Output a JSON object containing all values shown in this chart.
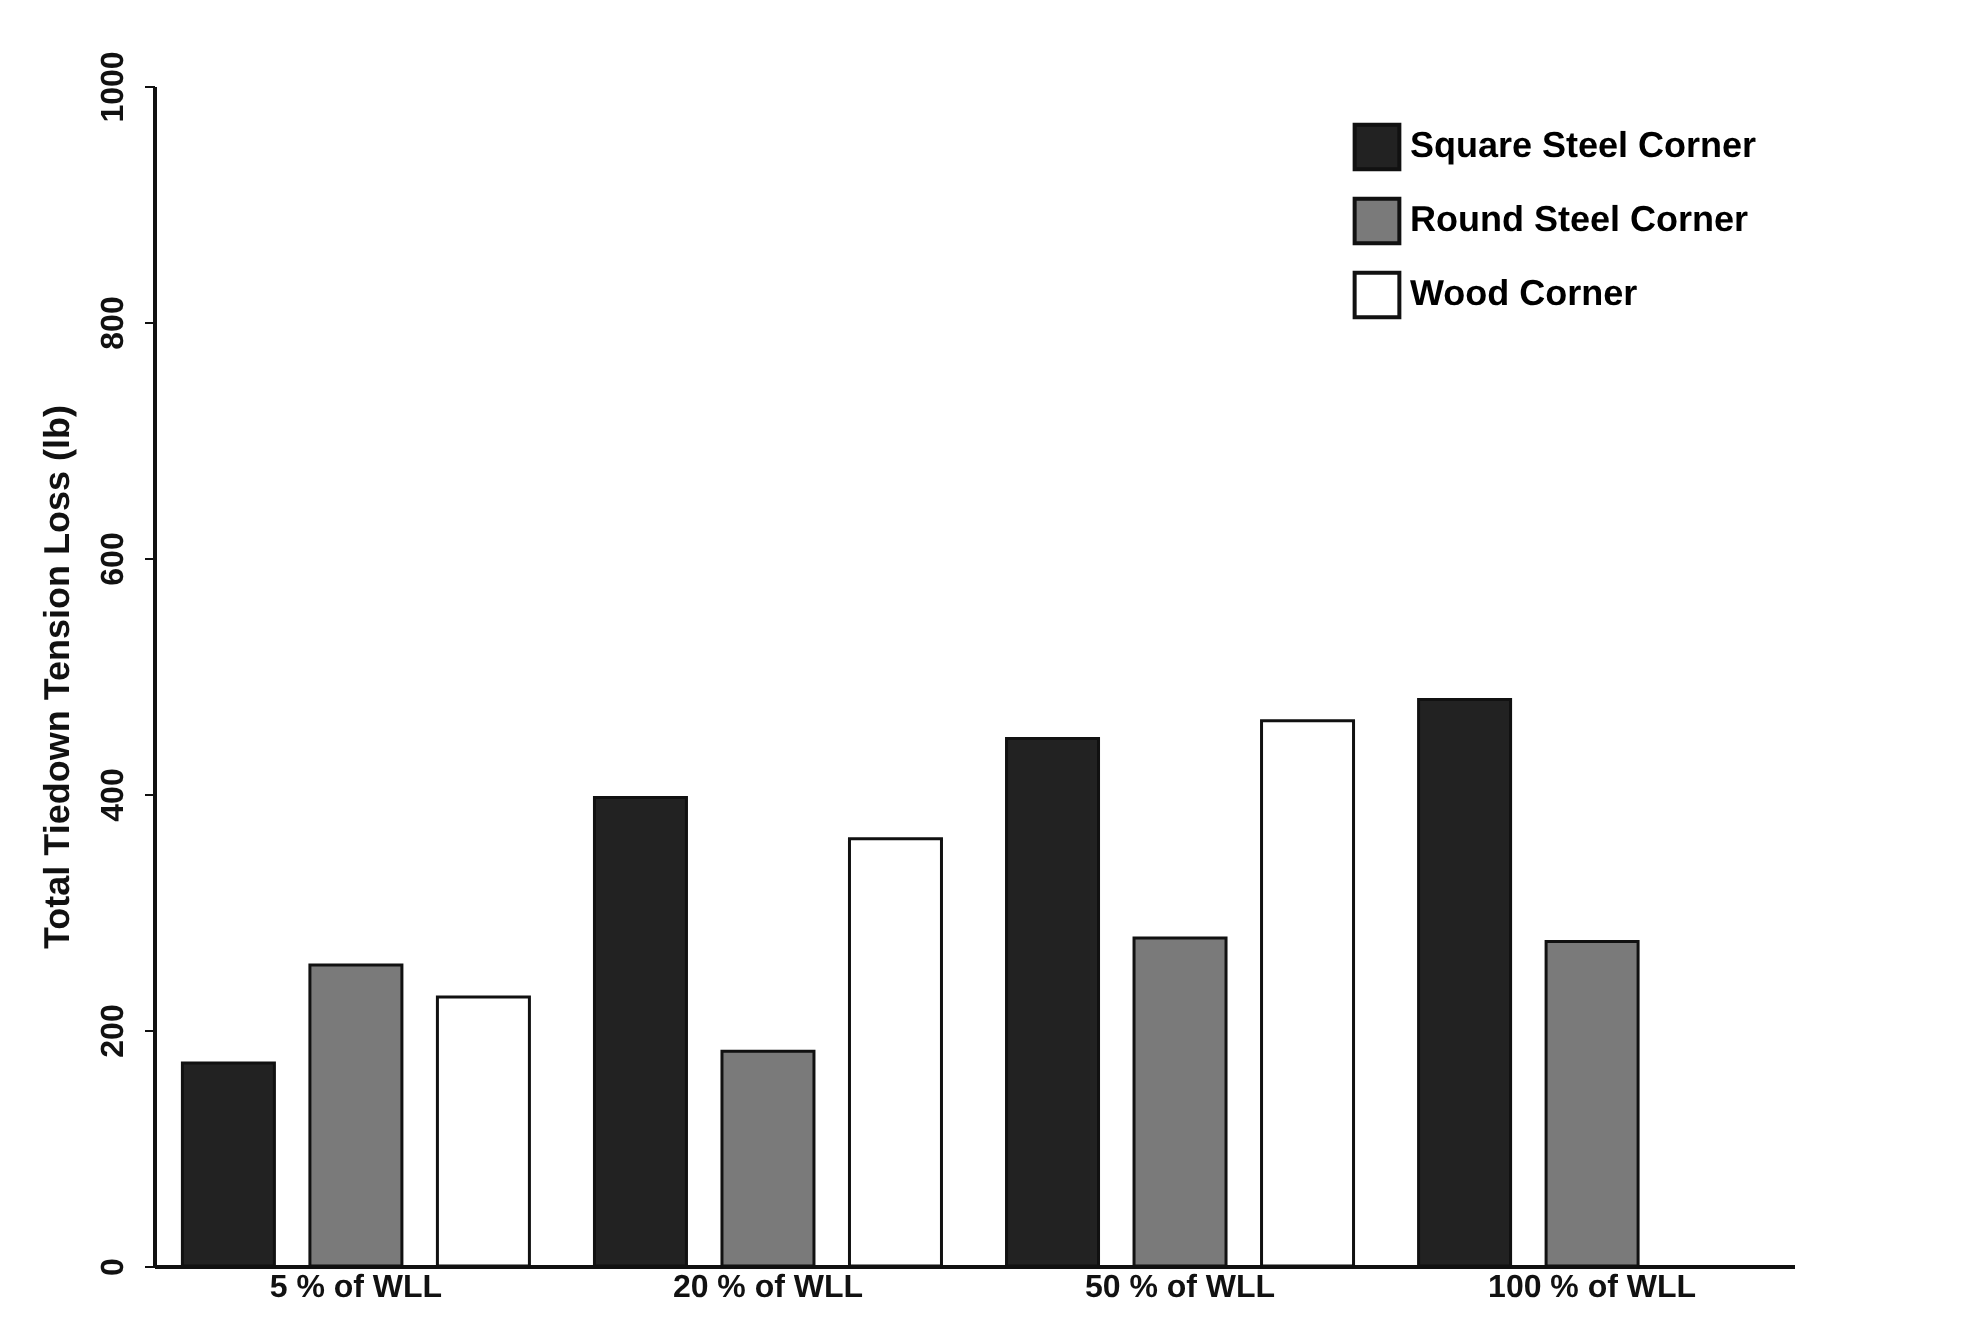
{
  "chart_data": {
    "type": "bar",
    "ylabel": "Total Tiedown Tension Loss (lb)",
    "categories": [
      "5 % of WLL",
      "20 % of WLL",
      "50 % of WLL",
      "100 % of WLL"
    ],
    "series": [
      {
        "name": "Square Steel Corner",
        "color": "#222222",
        "values": [
          172,
          397,
          447,
          480
        ]
      },
      {
        "name": "Round Steel Corner",
        "color": "#7a7a7a",
        "values": [
          255,
          182,
          278,
          275
        ]
      },
      {
        "name": "Wood Corner",
        "color": "#ffffff",
        "values": [
          228,
          362,
          462,
          null
        ]
      }
    ],
    "ylim": [
      0,
      1000
    ],
    "yticks": [
      0,
      200,
      400,
      600,
      800,
      1000
    ],
    "grid": false,
    "legend": "top right"
  }
}
